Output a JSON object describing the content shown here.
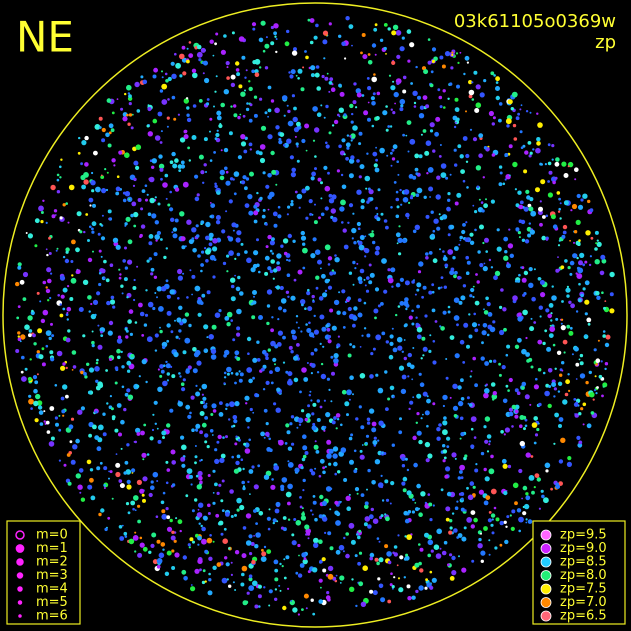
{
  "corner_label": "NE",
  "image_id": "03k61105o0369w",
  "mode": "zp",
  "magnitude_legend": [
    "m=0",
    "m=1",
    "m=2",
    "m=3",
    "m=4",
    "m=5",
    "m=6"
  ],
  "zp_legend": [
    {
      "label": "zp=9.5",
      "color": "#ff66ff"
    },
    {
      "label": "zp=9.0",
      "color": "#cc22ff"
    },
    {
      "label": "zp=8.5",
      "color": "#22ccff"
    },
    {
      "label": "zp=8.0",
      "color": "#22ee77"
    },
    {
      "label": "zp=7.5",
      "color": "#ffee00"
    },
    {
      "label": "zp=7.0",
      "color": "#ff8800"
    },
    {
      "label": "zp=6.5",
      "color": "#ff6677"
    }
  ]
}
